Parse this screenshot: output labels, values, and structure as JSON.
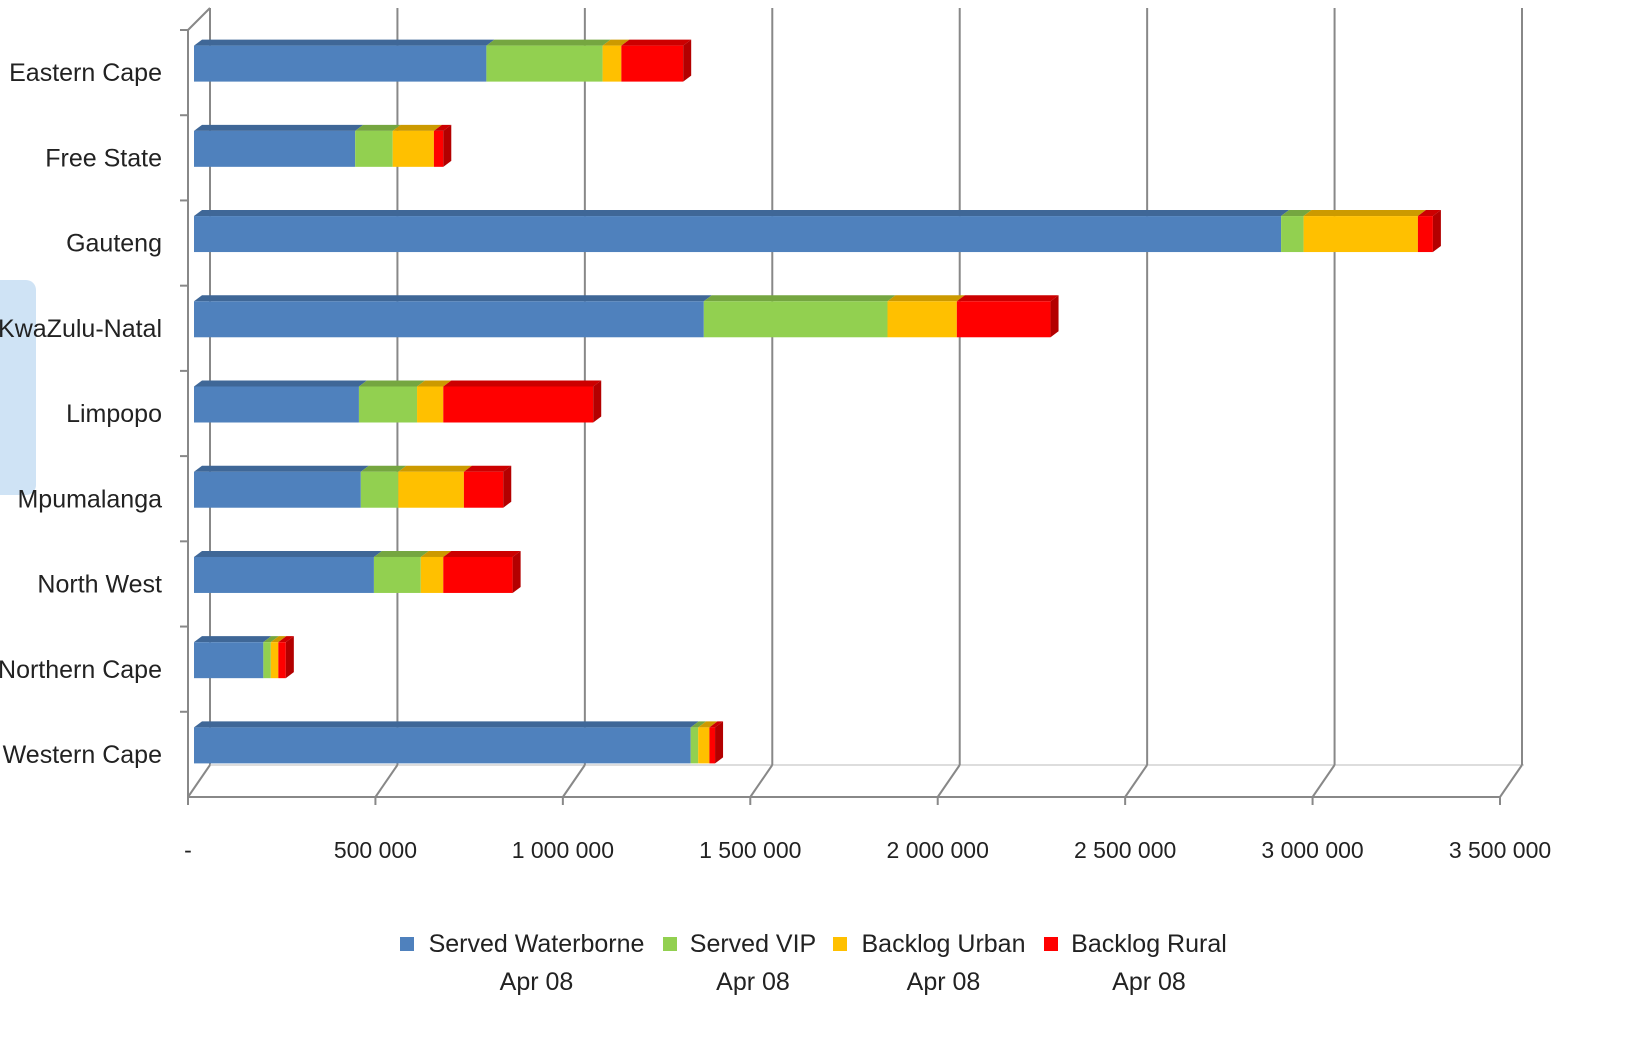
{
  "chart_data": {
    "type": "bar",
    "stacked": true,
    "categories": [
      "Eastern Cape",
      "Free State",
      "Gauteng",
      "KwaZulu-Natal",
      "Limpopo",
      "Mpumalanga",
      "North West",
      "Northern Cape",
      "Western Cape"
    ],
    "series": [
      {
        "name": "Served Waterborne Apr 08",
        "color": "#4f81bd",
        "values": [
          780000,
          430000,
          2900000,
          1360000,
          440000,
          445000,
          480000,
          185000,
          1325000
        ]
      },
      {
        "name": "Served VIP Apr 08",
        "color": "#92d050",
        "values": [
          310000,
          100000,
          60000,
          490000,
          155000,
          100000,
          125000,
          20000,
          20000
        ]
      },
      {
        "name": "Backlog Urban Apr 08",
        "color": "#ffc000",
        "values": [
          50000,
          110000,
          305000,
          185000,
          70000,
          175000,
          60000,
          20000,
          30000
        ]
      },
      {
        "name": "Backlog Rural Apr 08",
        "color": "#ff0000",
        "values": [
          165000,
          25000,
          40000,
          250000,
          400000,
          105000,
          185000,
          20000,
          15000
        ]
      }
    ],
    "xlim": [
      0,
      3500000
    ],
    "xticks": [
      {
        "value": 0,
        "label": "-"
      },
      {
        "value": 500000,
        "label": "500 000"
      },
      {
        "value": 1000000,
        "label": "1 000 000"
      },
      {
        "value": 1500000,
        "label": "1 500 000"
      },
      {
        "value": 2000000,
        "label": "2 000 000"
      },
      {
        "value": 2500000,
        "label": "2 500 000"
      },
      {
        "value": 3000000,
        "label": "3 000 000"
      },
      {
        "value": 3500000,
        "label": "3 500 000"
      }
    ],
    "grid": true
  }
}
